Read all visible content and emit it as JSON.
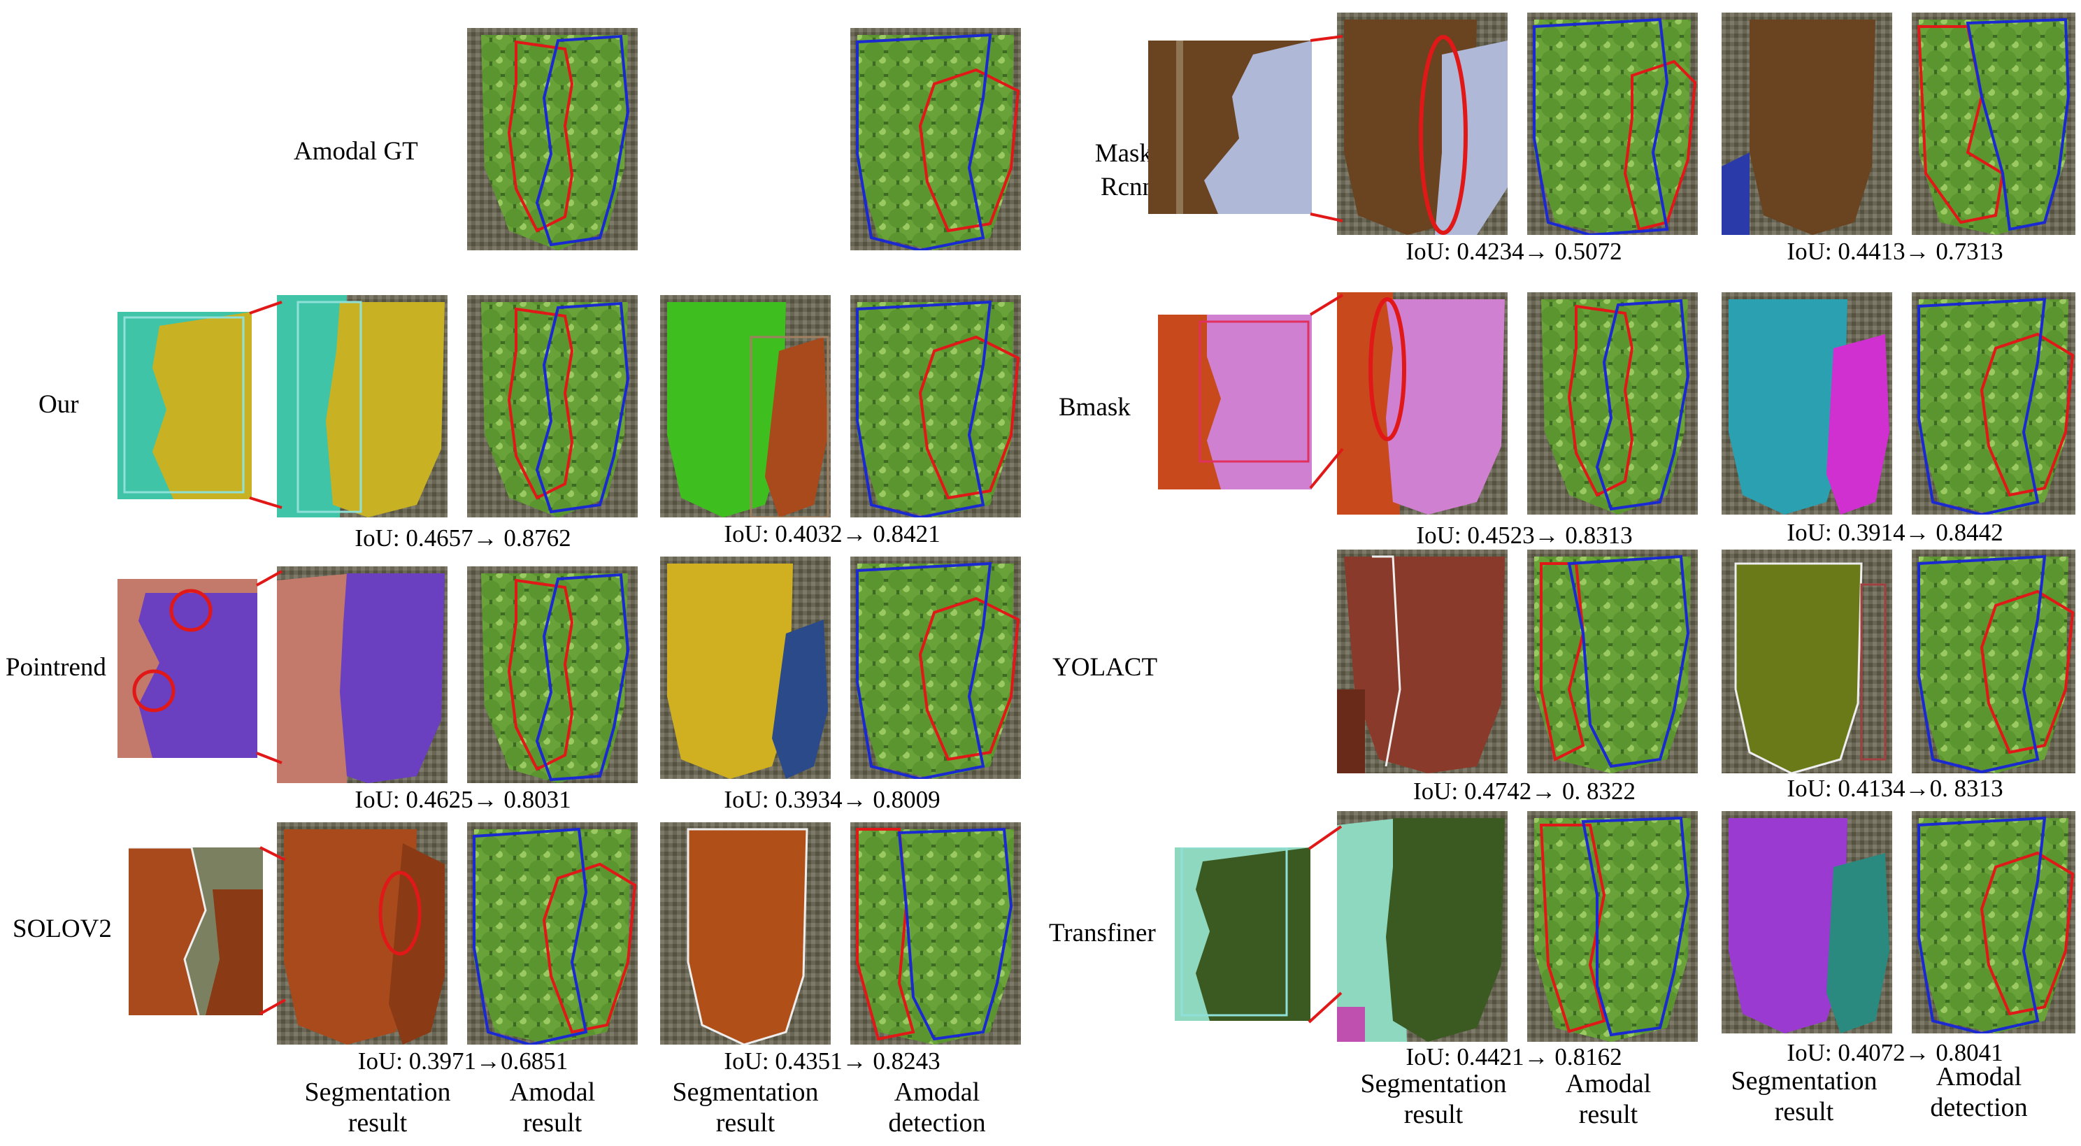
{
  "methods": {
    "amodal_gt": "Amodal GT",
    "ours": "Our",
    "pointrend": "Pointrend",
    "solov2": "SOLOV2",
    "mask_rcnn_line1": "Mask-",
    "mask_rcnn_line2": "Rcnn",
    "bmask": "Bmask",
    "yolact": "YOLACT",
    "transfiner": "Transfiner"
  },
  "iou": {
    "ours_1": "IoU: 0.4657→ 0.8762",
    "ours_2": "IoU: 0.4032→ 0.8421",
    "pointrend_1": "IoU: 0.4625→ 0.8031",
    "pointrend_2": "IoU: 0.3934→ 0.8009",
    "solov2_1": "IoU: 0.3971→0.6851",
    "solov2_2": "IoU: 0.4351→ 0.8243",
    "maskrcnn_1": "IoU: 0.4234→ 0.5072",
    "maskrcnn_2": "IoU: 0.4413→ 0.7313",
    "bmask_1": "IoU: 0.4523→ 0.8313",
    "bmask_2": "IoU: 0.3914→ 0.8442",
    "yolact_1": "IoU: 0.4742→ 0. 8322",
    "yolact_2": "IoU: 0.4134→0. 8313",
    "transfiner_1": "IoU: 0.4421→ 0.8162",
    "transfiner_2": "IoU: 0.4072→ 0.8041"
  },
  "captions": {
    "seg_l1": "Segmentation",
    "seg_l2": "result",
    "amodal_l1": "Amodal",
    "amodal_l2": "result",
    "amodal_det_l1": "Amodal",
    "amodal_det_l2": "detection"
  },
  "colors": {
    "grape_green": "#4f8a2a",
    "teal": "#3fc4a8",
    "yellow": "#c8b224",
    "purple": "#6a3fc0",
    "orange_brown": "#a84a1c",
    "bright_green": "#3fbf1f",
    "pink": "#d080d0",
    "blue_outline": "#1a2ad0",
    "red_outline": "#e01818"
  }
}
